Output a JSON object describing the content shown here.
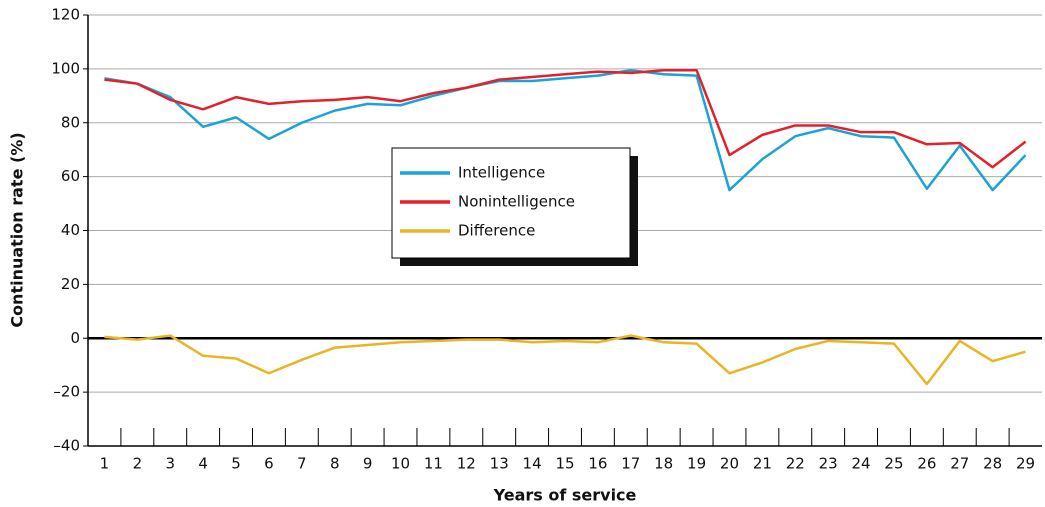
{
  "chart_data": {
    "type": "line",
    "xlabel": "Years of service",
    "ylabel": "Continuation rate (%)",
    "categories": [
      "1",
      "2",
      "3",
      "4",
      "5",
      "6",
      "7",
      "8",
      "9",
      "10",
      "11",
      "12",
      "13",
      "14",
      "15",
      "16",
      "17",
      "18",
      "19",
      "20",
      "21",
      "22",
      "23",
      "24",
      "25",
      "26",
      "27",
      "28",
      "29"
    ],
    "series": [
      {
        "name": "Intelligence",
        "color": "#1ba3d6",
        "values": [
          96.5,
          94.5,
          89.5,
          78.5,
          82,
          74,
          80,
          84.5,
          87,
          86.5,
          90,
          93,
          95.5,
          95.5,
          96.5,
          97.5,
          99.5,
          98,
          97.5,
          55,
          66.5,
          75,
          78,
          75,
          74.5,
          55.5,
          71.5,
          55,
          68
        ]
      },
      {
        "name": "Nonintelligence",
        "color": "#e3212b",
        "values": [
          96,
          94.5,
          88.5,
          85,
          89.5,
          87,
          88,
          88.5,
          89.5,
          88,
          91,
          93,
          96,
          97,
          98,
          99,
          98.5,
          99.5,
          99.5,
          68,
          75.5,
          79,
          79,
          76.5,
          76.5,
          72,
          72.5,
          63.5,
          73
        ]
      },
      {
        "name": "Difference",
        "color": "#e8b523",
        "values": [
          0.5,
          -0.5,
          1,
          -6.5,
          -7.5,
          -13,
          -8,
          -3.5,
          -2.5,
          -1.5,
          -1,
          -0.5,
          -0.5,
          -1.5,
          -1,
          -1.5,
          1,
          -1.5,
          -2,
          -13,
          -9,
          -4,
          -1,
          -1.5,
          -2,
          -17,
          -1,
          -8.5,
          -5
        ]
      }
    ],
    "ylim": [
      -40,
      120
    ],
    "yticks": [
      {
        "value": -40,
        "label": "–40"
      },
      {
        "value": -20,
        "label": "–20"
      },
      0,
      20,
      40,
      60,
      80,
      100,
      120
    ],
    "grid": true,
    "legend_position": "center"
  }
}
